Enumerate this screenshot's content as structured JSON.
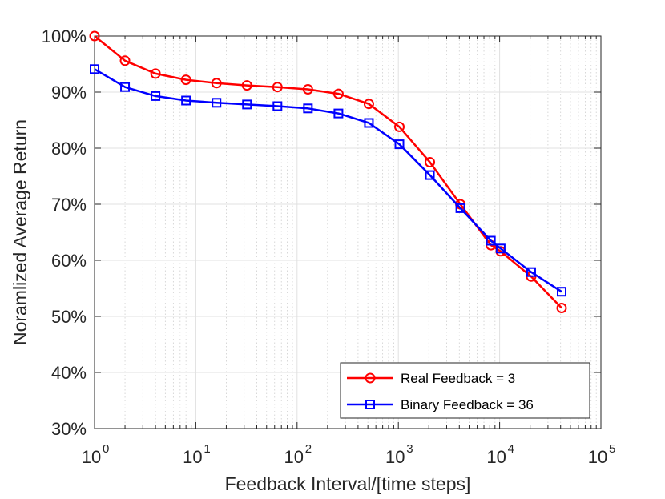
{
  "chart_data": {
    "type": "line",
    "xscale": "log",
    "xlabel": "Feedback Interval/[time steps]",
    "ylabel": "Noramlized Average Return",
    "xlim": [
      1,
      100000
    ],
    "ylim": [
      30,
      100
    ],
    "grid": true,
    "legend_position": "bottom-right",
    "x_ticks": [
      {
        "base": "10",
        "exp": "0",
        "value": 1
      },
      {
        "base": "10",
        "exp": "1",
        "value": 10
      },
      {
        "base": "10",
        "exp": "2",
        "value": 100
      },
      {
        "base": "10",
        "exp": "3",
        "value": 1000
      },
      {
        "base": "10",
        "exp": "4",
        "value": 10000
      },
      {
        "base": "10",
        "exp": "5",
        "value": 100000
      }
    ],
    "y_ticks": [
      {
        "label": "30%",
        "value": 30
      },
      {
        "label": "40%",
        "value": 40
      },
      {
        "label": "50%",
        "value": 50
      },
      {
        "label": "60%",
        "value": 60
      },
      {
        "label": "70%",
        "value": 70
      },
      {
        "label": "80%",
        "value": 80
      },
      {
        "label": "90%",
        "value": 90
      },
      {
        "label": "100%",
        "value": 100
      }
    ],
    "x": [
      1,
      2,
      4,
      8,
      16,
      32,
      64,
      128,
      256,
      512,
      1024,
      2048,
      4096,
      8192,
      10240,
      20480,
      40960
    ],
    "series": [
      {
        "name": "Real Feedback = 3",
        "color": "#ff0000",
        "marker": "circle",
        "values": [
          100.0,
          95.6,
          93.3,
          92.2,
          91.6,
          91.2,
          90.9,
          90.5,
          89.7,
          87.9,
          83.8,
          77.5,
          70.0,
          62.7,
          61.6,
          57.1,
          51.5
        ]
      },
      {
        "name": "Binary Feedback = 36",
        "color": "#0000ff",
        "marker": "square",
        "values": [
          94.1,
          90.9,
          89.3,
          88.5,
          88.1,
          87.8,
          87.5,
          87.1,
          86.2,
          84.5,
          80.7,
          75.2,
          69.3,
          63.5,
          62.1,
          57.9,
          54.4
        ]
      }
    ]
  }
}
